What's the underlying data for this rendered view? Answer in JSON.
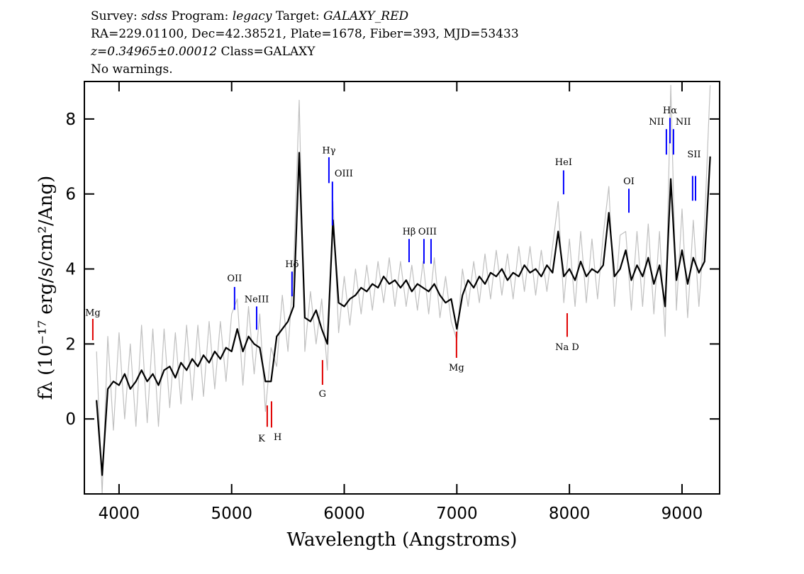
{
  "chart_data": {
    "type": "line",
    "header": [
      [
        {
          "text": "Survey: "
        },
        {
          "text": "sdss",
          "italic": true
        },
        {
          "text": " Program: "
        },
        {
          "text": "legacy",
          "italic": true
        },
        {
          "text": " Target: "
        },
        {
          "text": "GALAXY_RED",
          "italic": true
        }
      ],
      [
        {
          "text": "RA=229.01100, Dec=42.38521, Plate=1678, Fiber=393, MJD=53433"
        }
      ],
      [
        {
          "text": "z=0.34965±0.00012",
          "italic": true
        },
        {
          "text": " Class=GALAXY"
        }
      ],
      [
        {
          "text": "No warnings."
        }
      ]
    ],
    "x_label": "Wavelength (Angstroms)",
    "y_label": "fλ (10⁻¹⁷ erg/s/cm²/Ang)",
    "xlim": [
      3692,
      9334
    ],
    "ylim": [
      -2,
      9
    ],
    "xticks": [
      4000,
      5000,
      6000,
      7000,
      8000,
      9000
    ],
    "yticks": [
      0,
      2,
      4,
      6,
      8
    ],
    "x": [
      3800,
      3850,
      3900,
      3950,
      4000,
      4050,
      4100,
      4150,
      4200,
      4250,
      4300,
      4350,
      4400,
      4450,
      4500,
      4550,
      4600,
      4650,
      4700,
      4750,
      4800,
      4850,
      4900,
      4950,
      5000,
      5050,
      5100,
      5150,
      5200,
      5250,
      5300,
      5350,
      5400,
      5450,
      5500,
      5550,
      5600,
      5650,
      5700,
      5750,
      5800,
      5850,
      5900,
      5950,
      6000,
      6050,
      6100,
      6150,
      6200,
      6250,
      6300,
      6350,
      6400,
      6450,
      6500,
      6550,
      6600,
      6650,
      6700,
      6750,
      6800,
      6850,
      6900,
      6950,
      7000,
      7050,
      7100,
      7150,
      7200,
      7250,
      7300,
      7350,
      7400,
      7450,
      7500,
      7550,
      7600,
      7650,
      7700,
      7750,
      7800,
      7850,
      7900,
      7950,
      8000,
      8050,
      8100,
      8150,
      8200,
      8250,
      8300,
      8350,
      8400,
      8450,
      8500,
      8550,
      8600,
      8650,
      8700,
      8750,
      8800,
      8850,
      8900,
      8950,
      9000,
      9050,
      9100,
      9150,
      9200,
      9250
    ],
    "series": [
      {
        "color": "#c0c0c0",
        "values": [
          1.8,
          -2.0,
          2.2,
          -0.3,
          2.3,
          0.0,
          2.0,
          -0.2,
          2.5,
          -0.1,
          2.4,
          -0.2,
          2.4,
          0.3,
          2.3,
          0.4,
          2.5,
          0.5,
          2.5,
          0.6,
          2.6,
          0.8,
          2.6,
          1.0,
          2.8,
          3.2,
          0.9,
          3.0,
          1.2,
          2.8,
          0.2,
          1.9,
          1.4,
          3.3,
          1.8,
          4.0,
          8.5,
          1.8,
          3.4,
          2.0,
          3.2,
          1.3,
          5.8,
          2.3,
          3.8,
          2.5,
          4.0,
          2.8,
          4.1,
          2.9,
          4.2,
          3.1,
          4.3,
          3.0,
          4.2,
          3.0,
          4.1,
          2.9,
          4.2,
          2.8,
          4.3,
          2.7,
          3.8,
          2.6,
          2.1,
          4.0,
          3.0,
          4.2,
          3.1,
          4.4,
          3.2,
          4.5,
          3.3,
          4.4,
          3.2,
          4.6,
          3.4,
          4.6,
          3.3,
          4.5,
          3.4,
          4.6,
          5.8,
          3.1,
          4.8,
          3.0,
          5.0,
          3.1,
          4.8,
          3.2,
          4.9,
          6.2,
          3.0,
          4.9,
          5.0,
          2.9,
          5.0,
          3.0,
          5.2,
          2.8,
          5.0,
          2.2,
          8.9,
          2.9,
          5.6,
          2.7,
          5.3,
          3.0,
          5.2,
          8.9
        ]
      },
      {
        "color": "#000000",
        "values": [
          0.5,
          -1.5,
          0.8,
          1.0,
          0.9,
          1.2,
          0.8,
          1.0,
          1.3,
          1.0,
          1.2,
          0.9,
          1.3,
          1.4,
          1.1,
          1.5,
          1.3,
          1.6,
          1.4,
          1.7,
          1.5,
          1.8,
          1.6,
          1.9,
          1.8,
          2.4,
          1.8,
          2.2,
          2.0,
          1.9,
          1.0,
          1.0,
          2.2,
          2.4,
          2.6,
          3.0,
          7.1,
          2.7,
          2.6,
          2.9,
          2.4,
          2.0,
          5.3,
          3.1,
          3.0,
          3.2,
          3.3,
          3.5,
          3.4,
          3.6,
          3.5,
          3.8,
          3.6,
          3.7,
          3.5,
          3.7,
          3.4,
          3.6,
          3.5,
          3.4,
          3.6,
          3.3,
          3.1,
          3.2,
          2.4,
          3.3,
          3.7,
          3.5,
          3.8,
          3.6,
          3.9,
          3.8,
          4.0,
          3.7,
          3.9,
          3.8,
          4.1,
          3.9,
          4.0,
          3.8,
          4.1,
          3.9,
          5.0,
          3.8,
          4.0,
          3.7,
          4.2,
          3.8,
          4.0,
          3.9,
          4.1,
          5.5,
          3.8,
          4.0,
          4.5,
          3.7,
          4.1,
          3.8,
          4.3,
          3.6,
          4.1,
          3.0,
          6.4,
          3.7,
          4.5,
          3.6,
          4.3,
          3.9,
          4.2,
          7.0
        ]
      }
    ],
    "annotations": [
      {
        "text": "Mg",
        "x": [
          3767
        ],
        "y": 2.85,
        "marker": [
          2.1,
          2.67
        ],
        "color": "#e00000"
      },
      {
        "text": "OII",
        "x": [
          5026
        ],
        "y": 3.76,
        "marker": [
          2.91,
          3.52
        ],
        "color": "#0000ff"
      },
      {
        "text": "NeIII",
        "x": [
          5222
        ],
        "y": 3.21,
        "marker": [
          2.38,
          3.0
        ],
        "color": "#0000ff"
      },
      {
        "text": "Hδ",
        "x": [
          5536
        ],
        "y": 4.14,
        "marker": [
          3.27,
          3.93
        ],
        "color": "#0000ff"
      },
      {
        "text": "Hγ",
        "x": [
          5864
        ],
        "y": 7.18,
        "marker": [
          6.29,
          6.98
        ],
        "color": "#0000ff"
      },
      {
        "text": "OIII",
        "x": [
          5895
        ],
        "y": 6.56,
        "marker": [
          5.16,
          6.33
        ],
        "color": "#0000ff",
        "anchor": "start"
      },
      {
        "text": "Hβ",
        "x": [
          6576
        ],
        "y": 5.01,
        "marker": [
          4.18,
          4.8
        ],
        "color": "#0000ff"
      },
      {
        "text": "OIII",
        "x": [
          6708,
          6771
        ],
        "y": 5.01,
        "marker": [
          4.14,
          4.8
        ],
        "color": "#0000ff"
      },
      {
        "text": "HeI",
        "x": [
          7948
        ],
        "y": 6.86,
        "marker": [
          5.99,
          6.63
        ],
        "color": "#0000ff"
      },
      {
        "text": "OI",
        "x": [
          8528
        ],
        "y": 6.35,
        "marker": [
          5.5,
          6.14
        ],
        "color": "#0000ff"
      },
      {
        "text": "NII",
        "x": [
          8861
        ],
        "y": 7.94,
        "marker": [
          7.05,
          7.73
        ],
        "color": "#0000ff",
        "anchor": "end"
      },
      {
        "text": "Hα",
        "x": [
          8893
        ],
        "y": 8.24,
        "marker": [
          7.35,
          8.03
        ],
        "color": "#0000ff"
      },
      {
        "text": "NII",
        "x": [
          8924
        ],
        "y": 7.94,
        "marker": [
          7.05,
          7.73
        ],
        "color": "#0000ff",
        "anchor": "start"
      },
      {
        "text": "SII",
        "x": [
          9094,
          9120
        ],
        "y": 7.07,
        "marker": [
          5.82,
          6.48
        ],
        "color": "#0000ff"
      },
      {
        "text": "K",
        "x": [
          5316
        ],
        "y": -0.51,
        "marker": [
          -0.21,
          0.36
        ],
        "color": "#e00000",
        "anchor": "end"
      },
      {
        "text": "H",
        "x": [
          5354
        ],
        "y": -0.47,
        "marker": [
          -0.23,
          0.47
        ],
        "color": "#e00000",
        "anchor": "start"
      },
      {
        "text": "G",
        "x": [
          5807
        ],
        "y": 0.68,
        "marker": [
          0.91,
          1.57
        ],
        "color": "#e00000"
      },
      {
        "text": "Mg",
        "x": [
          6997
        ],
        "y": 1.38,
        "marker": [
          1.63,
          2.33
        ],
        "color": "#e00000"
      },
      {
        "text": "Na D",
        "x": [
          7980
        ],
        "y": 1.93,
        "marker": [
          2.19,
          2.82
        ],
        "color": "#e00000"
      }
    ]
  }
}
